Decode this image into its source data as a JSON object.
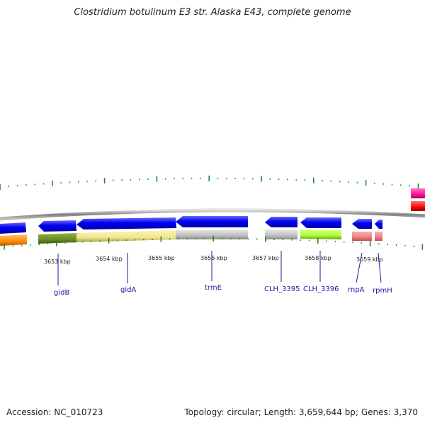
{
  "title": "Clostridium botulinum E3 str. Alaska E43, complete genome",
  "footer": {
    "accession": "Accession: NC_010723",
    "summary": "Topology: circular; Length: 3,659,644 bp; Genes: 3,370"
  },
  "ruler_labels": [
    "3653 kbp",
    "3654 kbp",
    "3655 kbp",
    "3656 kbp",
    "3657 kbp",
    "3658 kbp",
    "3659 kbp"
  ],
  "gene_labels": [
    "gidB",
    "gidA",
    "trmE",
    "CLH_3395",
    "CLH_3396",
    "rnpA",
    "rpmH"
  ],
  "colors": {
    "backbone": "#808080",
    "cds_arrow": "#0000ee",
    "tick": "#228b22",
    "label_line": "#1a1aa6",
    "feat_orange": "#ff8c00",
    "feat_olive": "#6b8e23",
    "feat_khaki": "#f0e68c",
    "feat_gray": "#c0c0c0",
    "feat_lime": "#adff2f",
    "feat_pink": "#f08080",
    "feat_magenta": "#ff1493",
    "feat_red": "#ff0000"
  }
}
